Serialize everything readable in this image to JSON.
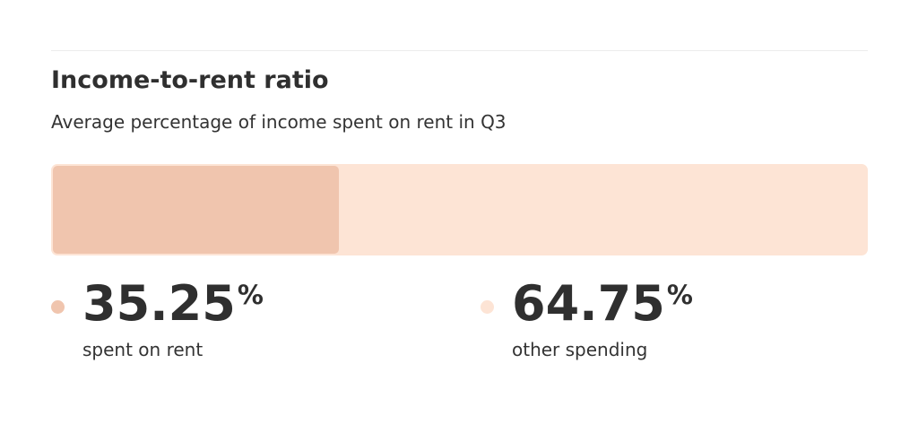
{
  "title": "Income-to-rent ratio",
  "subtitle": "Average percentage of income spent on rent in Q3",
  "colors": {
    "rent": "#f0c5ae",
    "other": "#fde4d5",
    "text": "#333333"
  },
  "chart_data": {
    "type": "bar",
    "stacked": true,
    "orientation": "horizontal",
    "total": 100,
    "series": [
      {
        "name": "spent on rent",
        "value": 35.25,
        "display": "35.25",
        "unit": "%",
        "color": "#f0c5ae"
      },
      {
        "name": "other spending",
        "value": 64.75,
        "display": "64.75",
        "unit": "%",
        "color": "#fde4d5"
      }
    ]
  }
}
